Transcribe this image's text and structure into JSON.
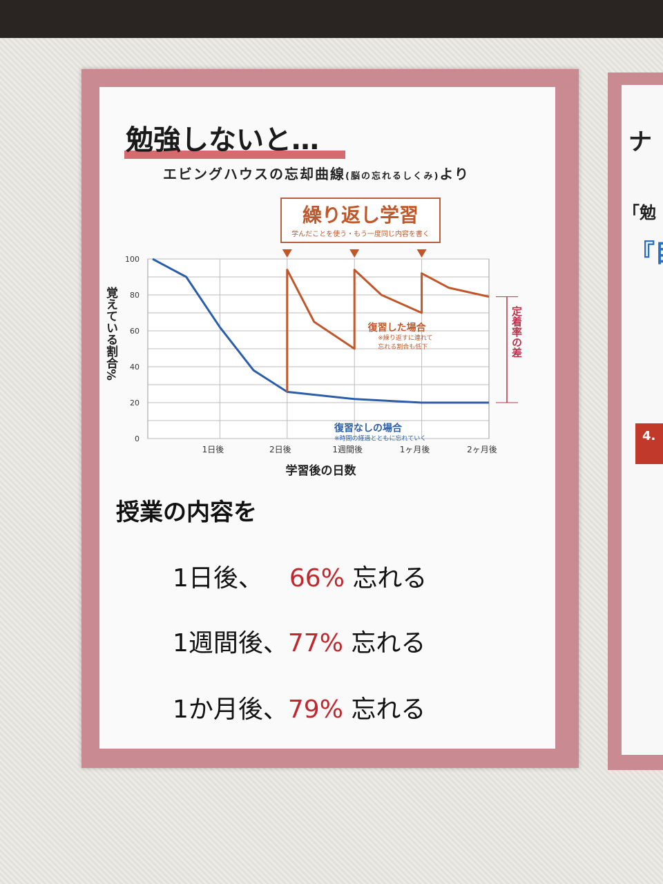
{
  "poster": {
    "title": "勉強しないと…",
    "subtitle": "エビングハウスの忘却曲線",
    "subtitle_paren": "(脳の忘れるしくみ)",
    "subtitle_suffix": "より",
    "box_title": "繰り返し学習",
    "box_note": "学んだことを使う・もう一度同じ内容を書く",
    "section": "授業の内容を",
    "lines": [
      {
        "prefix": "1日後、",
        "pct": "66%",
        "suffix": "忘れる"
      },
      {
        "prefix": "1週間後、",
        "pct": "77%",
        "suffix": "忘れる"
      },
      {
        "prefix": "1か月後、",
        "pct": "79%",
        "suffix": "忘れる"
      }
    ],
    "colors": {
      "border": "#c98a91",
      "review": "#c0572a",
      "no_review": "#2a5ea8",
      "diff": "#b8324a",
      "highlight": "#c0282d"
    }
  },
  "side_poster": {
    "fragments": [
      "ナ",
      "「勉",
      "『目",
      "4."
    ]
  },
  "chart_data": {
    "type": "line",
    "xlabel": "学習後の日数",
    "ylabel": "覚えている割合%",
    "categories": [
      "",
      "1日後",
      "2日後",
      "1週間後",
      "1ヶ月後",
      "2ヶ月後"
    ],
    "yticks": [
      0,
      20,
      40,
      60,
      80,
      100
    ],
    "ylim": [
      0,
      100
    ],
    "grid": true,
    "series": [
      {
        "name": "復習なしの場合",
        "note": "※時間の経過とともに忘れていく",
        "points": [
          [
            0,
            100
          ],
          [
            0.5,
            90
          ],
          [
            1,
            62
          ],
          [
            1.5,
            38
          ],
          [
            2,
            26
          ],
          [
            3,
            22
          ],
          [
            4,
            20
          ],
          [
            5,
            20
          ]
        ]
      },
      {
        "name": "復習した場合",
        "note_lines": [
          "※繰り返すに連れて",
          "忘れる割合も低下"
        ],
        "points": [
          [
            2,
            26
          ],
          [
            2,
            94
          ],
          [
            2.4,
            65
          ],
          [
            3,
            50
          ],
          [
            3,
            94
          ],
          [
            3.4,
            80
          ],
          [
            4,
            70
          ],
          [
            4,
            92
          ],
          [
            4.4,
            84
          ],
          [
            5,
            79
          ]
        ]
      }
    ],
    "annotation": "定着率の差"
  }
}
